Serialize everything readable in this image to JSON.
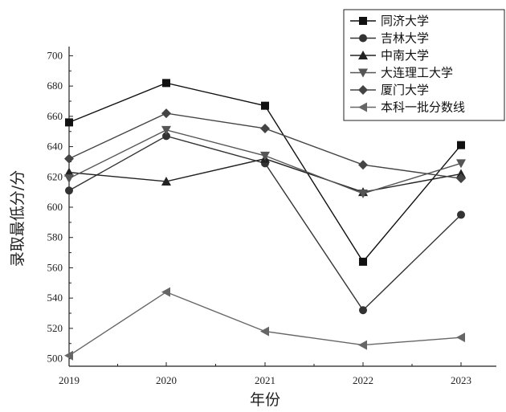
{
  "chart_data": {
    "type": "line",
    "title": "",
    "xlabel": "年份",
    "ylabel": "录取最低分/分",
    "x": [
      "2019",
      "2020",
      "2021",
      "2022",
      "2023"
    ],
    "ylim": [
      495,
      705
    ],
    "yticks": [
      500,
      520,
      540,
      560,
      580,
      600,
      620,
      640,
      660,
      680,
      700
    ],
    "grid": false,
    "legend_position": "top-right",
    "series": [
      {
        "name": "同济大学",
        "marker": "square",
        "color": "#111111",
        "values": [
          656,
          682,
          667,
          564,
          641
        ]
      },
      {
        "name": "吉林大学",
        "marker": "circle",
        "color": "#333333",
        "values": [
          611,
          647,
          629,
          532,
          595
        ]
      },
      {
        "name": "中南大学",
        "marker": "triangle-up",
        "color": "#222222",
        "values": [
          623,
          617,
          632,
          610,
          622
        ]
      },
      {
        "name": "大连理工大学",
        "marker": "triangle-down",
        "color": "#555555",
        "values": [
          619,
          651,
          634,
          609,
          629
        ]
      },
      {
        "name": "厦门大学",
        "marker": "diamond",
        "color": "#444444",
        "values": [
          632,
          662,
          652,
          628,
          619
        ]
      },
      {
        "name": "本科一批分数线",
        "marker": "triangle-left",
        "color": "#666666",
        "values": [
          502,
          544,
          518,
          509,
          514
        ]
      }
    ]
  }
}
